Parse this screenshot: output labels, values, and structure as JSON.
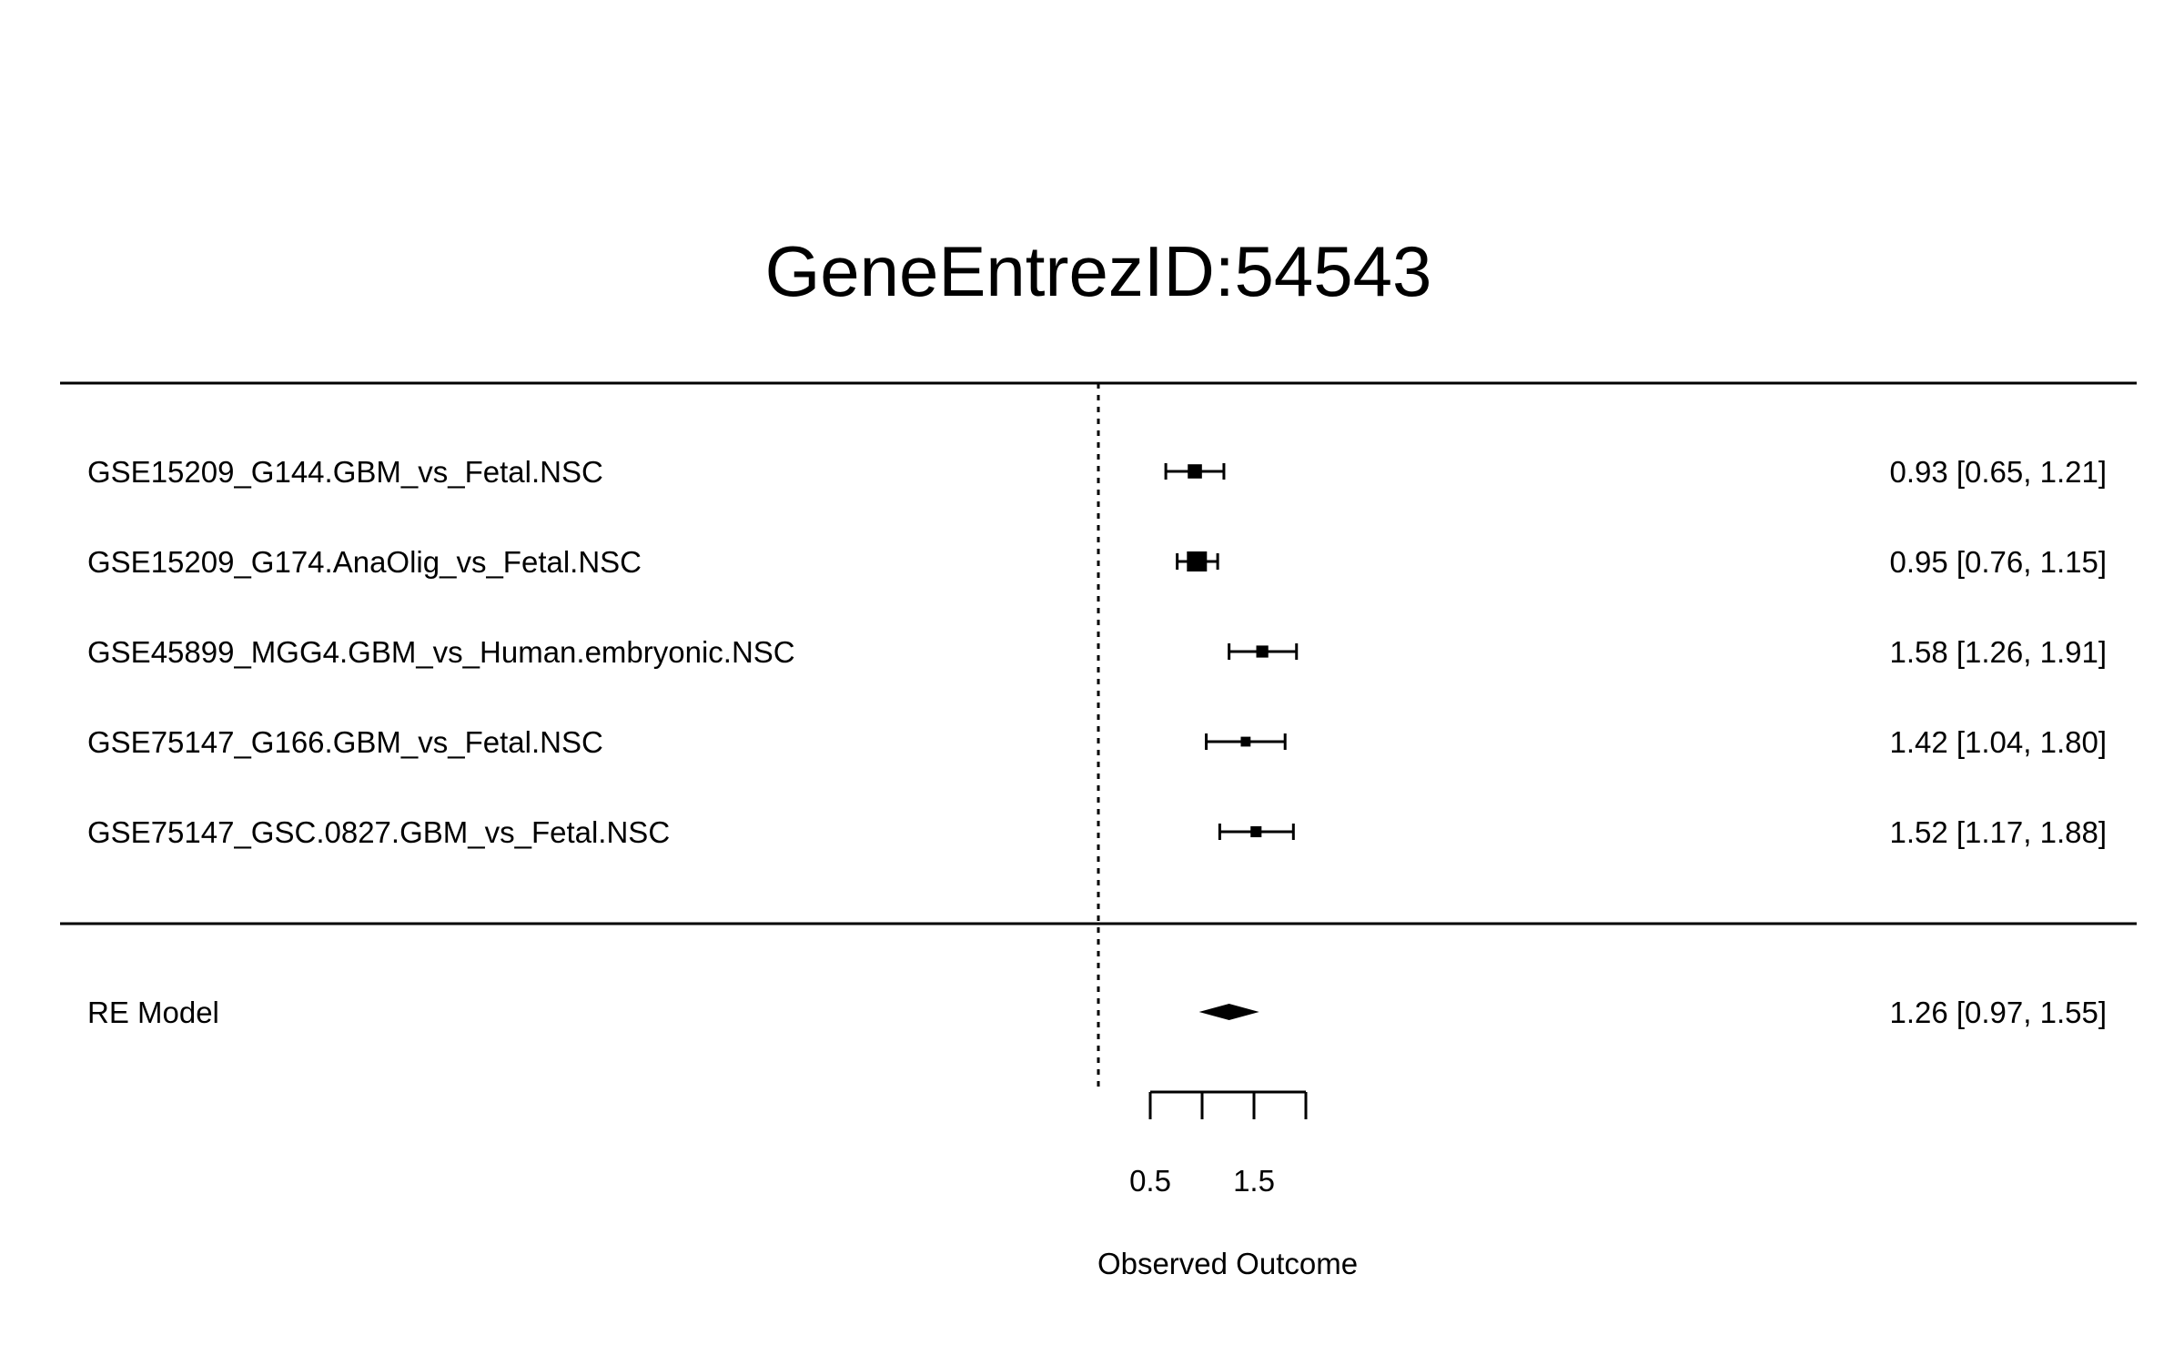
{
  "chart_data": {
    "type": "forest",
    "title": "GeneEntrezID:54543",
    "xlabel": "Observed Outcome",
    "xlim": [
      0.0,
      2.5
    ],
    "reference_line": 0,
    "axis_ticks": [
      0.5,
      1.0,
      1.5,
      2.0
    ],
    "axis_tick_labels": [
      "0.5",
      "",
      "1.5",
      ""
    ],
    "studies": [
      {
        "label": "GSE15209_G144.GBM_vs_Fetal.NSC",
        "estimate": 0.93,
        "lower": 0.65,
        "upper": 1.21,
        "text": "0.93 [0.65, 1.21]",
        "weight": 0.6
      },
      {
        "label": "GSE15209_G174.AnaOlig_vs_Fetal.NSC",
        "estimate": 0.95,
        "lower": 0.76,
        "upper": 1.15,
        "text": "0.95 [0.76, 1.15]",
        "weight": 1.0
      },
      {
        "label": "GSE45899_MGG4.GBM_vs_Human.embryonic.NSC",
        "estimate": 1.58,
        "lower": 1.26,
        "upper": 1.91,
        "text": "1.58 [1.26, 1.91]",
        "weight": 0.45
      },
      {
        "label": "GSE75147_G166.GBM_vs_Fetal.NSC",
        "estimate": 1.42,
        "lower": 1.04,
        "upper": 1.8,
        "text": "1.42 [1.04, 1.80]",
        "weight": 0.3
      },
      {
        "label": "GSE75147_GSC.0827.GBM_vs_Fetal.NSC",
        "estimate": 1.52,
        "lower": 1.17,
        "upper": 1.88,
        "text": "1.52 [1.17, 1.88]",
        "weight": 0.38
      }
    ],
    "summary": {
      "label": "RE Model",
      "estimate": 1.26,
      "lower": 0.97,
      "upper": 1.55,
      "text": "1.26 [0.97, 1.55]"
    }
  }
}
